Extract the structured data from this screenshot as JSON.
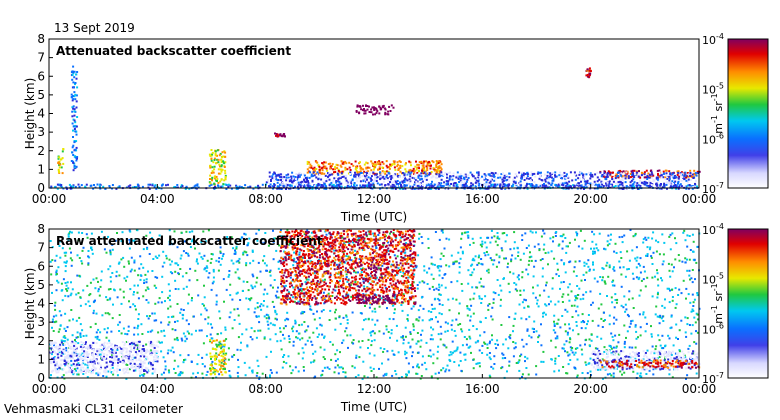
{
  "header": {
    "date": "13 Sept 2019"
  },
  "footer": {
    "instrument": "Vehmasmaki CL31 ceilometer"
  },
  "colormap": [
    "#ffffff",
    "#e6e6ff",
    "#2a2ad8",
    "#0a70ff",
    "#00c8f0",
    "#20c840",
    "#e8e800",
    "#ff8c00",
    "#e00000",
    "#800060"
  ],
  "chart_data": [
    {
      "type": "heatmap",
      "title": "Attenuated backscatter coefficient",
      "xlabel": "Time (UTC)",
      "ylabel": "Height (km)",
      "xlim": [
        0,
        24
      ],
      "ylim": [
        0,
        8
      ],
      "xticks": [
        0,
        4,
        8,
        12,
        16,
        20,
        24
      ],
      "xtick_labels": [
        "00:00",
        "04:00",
        "08:00",
        "12:00",
        "16:00",
        "20:00",
        "00:00"
      ],
      "yticks": [
        0,
        1,
        2,
        3,
        4,
        5,
        6,
        7,
        8
      ],
      "colorbar": {
        "scale": "log",
        "range": [
          1e-07,
          0.0001
        ],
        "ticks": [
          {
            "mantissa": "10",
            "exp": "-7",
            "value": 1e-07
          },
          {
            "mantissa": "10",
            "exp": "-6",
            "value": 1e-06
          },
          {
            "mantissa": "10",
            "exp": "-5",
            "value": 1e-05
          },
          {
            "mantissa": "10",
            "exp": "-4",
            "value": 0.0001
          }
        ],
        "unit_main": "m",
        "unit_exp1": "-1",
        "unit_mid": " sr",
        "unit_exp2": "-1"
      },
      "features": [
        {
          "kind": "boundary-layer",
          "t": [
            0,
            24
          ],
          "h": [
            0,
            0.25
          ],
          "level": 3
        },
        {
          "kind": "cloud",
          "t": [
            5.9,
            6.5
          ],
          "h": [
            0.2,
            2.1
          ],
          "level": 6
        },
        {
          "kind": "cloud",
          "t": [
            8.3,
            8.7
          ],
          "h": [
            2.8,
            3.0
          ],
          "level": 9
        },
        {
          "kind": "cloud",
          "t": [
            11.3,
            12.7
          ],
          "h": [
            4.0,
            4.5
          ],
          "level": 10
        },
        {
          "kind": "cloud",
          "t": [
            9.5,
            14.5
          ],
          "h": [
            0.8,
            1.5
          ],
          "level": 7
        },
        {
          "kind": "cloud",
          "t": [
            20.3,
            24
          ],
          "h": [
            0.6,
            1.0
          ],
          "level": 8
        },
        {
          "kind": "cloud",
          "t": [
            19.8,
            20.0
          ],
          "h": [
            6.0,
            6.5
          ],
          "level": 8
        },
        {
          "kind": "precip",
          "t": [
            0.8,
            1.0
          ],
          "h": [
            1.0,
            6.6
          ],
          "level": 3
        },
        {
          "kind": "precip",
          "t": [
            0.3,
            0.5
          ],
          "h": [
            0.8,
            2.2
          ],
          "level": 6
        },
        {
          "kind": "noise-floor",
          "t": [
            8,
            24
          ],
          "h": [
            0,
            0.9
          ],
          "level": 2
        }
      ]
    },
    {
      "type": "heatmap",
      "title": "Raw attenuated backscatter coefficient",
      "xlabel": "Time (UTC)",
      "ylabel": "Height (km)",
      "xlim": [
        0,
        24
      ],
      "ylim": [
        0,
        8
      ],
      "xticks": [
        0,
        4,
        8,
        12,
        16,
        20,
        24
      ],
      "xtick_labels": [
        "00:00",
        "04:00",
        "08:00",
        "12:00",
        "16:00",
        "20:00",
        "00:00"
      ],
      "yticks": [
        0,
        1,
        2,
        3,
        4,
        5,
        6,
        7,
        8
      ],
      "colorbar": {
        "scale": "log",
        "range": [
          1e-07,
          0.0001
        ],
        "ticks": [
          {
            "mantissa": "10",
            "exp": "-7",
            "value": 1e-07
          },
          {
            "mantissa": "10",
            "exp": "-6",
            "value": 1e-06
          },
          {
            "mantissa": "10",
            "exp": "-5",
            "value": 1e-05
          },
          {
            "mantissa": "10",
            "exp": "-4",
            "value": 0.0001
          }
        ],
        "unit_main": "m",
        "unit_exp1": "-1",
        "unit_mid": " sr",
        "unit_exp2": "-1"
      },
      "features": [
        {
          "kind": "noise-background",
          "t": [
            0,
            24
          ],
          "h": [
            0,
            8
          ],
          "level": 4
        },
        {
          "kind": "noise-high",
          "t": [
            8.5,
            13.5
          ],
          "h": [
            4,
            8
          ],
          "level": 8
        },
        {
          "kind": "clear-low",
          "t": [
            0,
            4
          ],
          "h": [
            0.3,
            2.0
          ],
          "level": 1
        },
        {
          "kind": "clear-low",
          "t": [
            20,
            24
          ],
          "h": [
            0.5,
            1.5
          ],
          "level": 1
        },
        {
          "kind": "cloud",
          "t": [
            5.9,
            6.5
          ],
          "h": [
            0.2,
            2.1
          ],
          "level": 6
        },
        {
          "kind": "cloud",
          "t": [
            11.3,
            12.7
          ],
          "h": [
            4.0,
            4.5
          ],
          "level": 10
        },
        {
          "kind": "cloud",
          "t": [
            20.3,
            24
          ],
          "h": [
            0.6,
            1.0
          ],
          "level": 8
        }
      ]
    }
  ]
}
